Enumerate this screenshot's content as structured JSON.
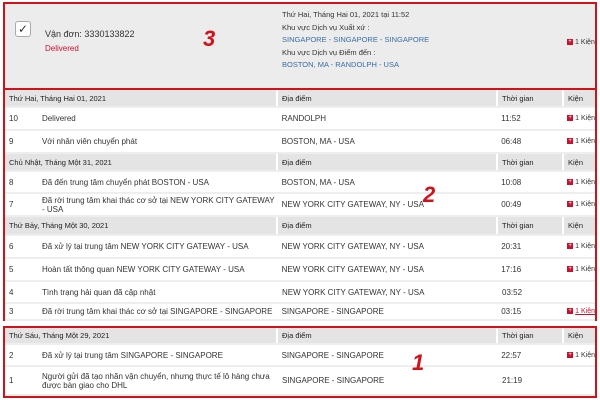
{
  "shipment": {
    "checkbox_glyph": "✓",
    "awb": "Vận đơn: 3330133822",
    "status": "Delivered",
    "datetime": "Thứ Hai, Tháng Hai 01, 2021 tại 11:52",
    "origin_label": "Khu vực Dịch vụ Xuất xứ :",
    "origin": "SINGAPORE - SINGAPORE - SINGAPORE",
    "dest_label": "Khu vực Dịch vụ Điểm đến :",
    "dest": "BOSTON, MA - RANDOLPH - USA",
    "pieces": "1 Kiện"
  },
  "annotations": {
    "a3": "3",
    "a2": "2",
    "a1": "1"
  },
  "colors": {
    "accent": "#d0121b",
    "link": "#3a6ea5"
  },
  "columns": {
    "location": "Địa điểm",
    "time": "Thời gian",
    "pieces": "Kiện"
  },
  "groups": [
    {
      "date": "Thứ Hai, Tháng Hai 01, 2021",
      "rows": [
        {
          "n": "10",
          "desc": "Delivered",
          "loc": "RANDOLPH",
          "time": "11:52",
          "pieces": "1 Kiện"
        },
        {
          "n": "9",
          "desc": "Với nhân viên chuyển phát",
          "loc": "BOSTON, MA - USA",
          "time": "06:48",
          "pieces": "1 Kiện"
        }
      ]
    },
    {
      "date": "Chủ Nhật, Tháng Một 31, 2021",
      "rows": [
        {
          "n": "8",
          "desc": "Đã đến trung tâm chuyển phát BOSTON - USA",
          "loc": "BOSTON, MA - USA",
          "time": "10:08",
          "pieces": "1 Kiện"
        },
        {
          "n": "7",
          "desc": "Đã rời trung tâm khai thác cơ sở tại NEW YORK CITY GATEWAY - USA",
          "loc": "NEW YORK CITY GATEWAY, NY - USA",
          "time": "00:49",
          "pieces": "1 Kiện"
        }
      ]
    },
    {
      "date": "Thứ Bảy, Tháng Một 30, 2021",
      "rows": [
        {
          "n": "6",
          "desc": "Đã xử lý tại trung tâm NEW YORK CITY GATEWAY - USA",
          "loc": "NEW YORK CITY GATEWAY, NY - USA",
          "time": "20:31",
          "pieces": "1 Kiện"
        },
        {
          "n": "5",
          "desc": "Hoàn tất thông quan NEW YORK CITY GATEWAY - USA",
          "loc": "NEW YORK CITY GATEWAY, NY - USA",
          "time": "17:16",
          "pieces": "1 Kiện"
        },
        {
          "n": "4",
          "desc": "Tình trạng hải quan đã cập nhật",
          "loc": "NEW YORK CITY GATEWAY, NY - USA",
          "time": "03:52",
          "pieces": ""
        },
        {
          "n": "3",
          "desc": "Đã rời trung tâm khai thác cơ sở tại SINGAPORE - SINGAPORE",
          "loc": "SINGAPORE - SINGAPORE",
          "time": "03:15",
          "pieces": "1 Kiện",
          "link": true
        }
      ]
    },
    {
      "date": "Thứ Sáu, Tháng Một 29, 2021",
      "rows": [
        {
          "n": "2",
          "desc": "Đã xử lý tại trung tâm SINGAPORE - SINGAPORE",
          "loc": "SINGAPORE - SINGAPORE",
          "time": "22:57",
          "pieces": "1 Kiện"
        },
        {
          "n": "1",
          "desc": "Người gửi đã tạo nhãn vận chuyển, nhưng thực tế lô hàng chưa được bàn giao cho DHL",
          "loc": "SINGAPORE - SINGAPORE",
          "time": "21:19",
          "pieces": ""
        }
      ]
    }
  ]
}
